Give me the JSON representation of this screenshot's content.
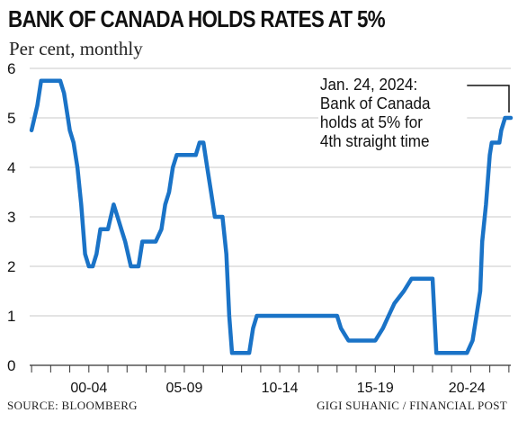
{
  "title": "BANK OF CANADA HOLDS RATES AT 5%",
  "subtitle": "Per cent, monthly",
  "source": "SOURCE: BLOOMBERG",
  "credit": "GIGI SUHANIC / FINANCIAL POST",
  "colors": {
    "line": "#1a73c7",
    "grid": "#c8c8c8",
    "axis": "#333333",
    "text": "#111111"
  },
  "chart_data": {
    "type": "line",
    "title": "BANK OF CANADA HOLDS RATES AT 5%",
    "subtitle": "Per cent, monthly",
    "ylim": [
      0,
      6
    ],
    "yticks": [
      "0",
      "1",
      "2",
      "3",
      "4",
      "5",
      "6"
    ],
    "grid": "horizontal",
    "xlim": [
      1998.9,
      2024.1
    ],
    "xticks": [
      {
        "label": "00-04",
        "x": 2002.0
      },
      {
        "label": "05-09",
        "x": 2007.0
      },
      {
        "label": "10-14",
        "x": 2012.0
      },
      {
        "label": "15-19",
        "x": 2017.0
      },
      {
        "label": "20-24",
        "x": 2021.8
      }
    ],
    "series": [
      {
        "points": [
          [
            1999.0,
            4.75
          ],
          [
            1999.3,
            5.25
          ],
          [
            1999.5,
            5.75
          ],
          [
            2000.0,
            5.75
          ],
          [
            2000.5,
            5.75
          ],
          [
            2000.7,
            5.5
          ],
          [
            2000.9,
            5.0
          ],
          [
            2001.0,
            4.75
          ],
          [
            2001.2,
            4.5
          ],
          [
            2001.4,
            4.0
          ],
          [
            2001.6,
            3.25
          ],
          [
            2001.8,
            2.25
          ],
          [
            2002.0,
            2.0
          ],
          [
            2002.2,
            2.0
          ],
          [
            2002.4,
            2.25
          ],
          [
            2002.6,
            2.75
          ],
          [
            2003.0,
            2.75
          ],
          [
            2003.3,
            3.25
          ],
          [
            2003.5,
            3.0
          ],
          [
            2003.7,
            2.75
          ],
          [
            2003.9,
            2.5
          ],
          [
            2004.2,
            2.0
          ],
          [
            2004.6,
            2.0
          ],
          [
            2004.8,
            2.5
          ],
          [
            2005.5,
            2.5
          ],
          [
            2005.8,
            2.75
          ],
          [
            2006.0,
            3.25
          ],
          [
            2006.2,
            3.5
          ],
          [
            2006.4,
            4.0
          ],
          [
            2006.6,
            4.25
          ],
          [
            2007.2,
            4.25
          ],
          [
            2007.6,
            4.25
          ],
          [
            2007.8,
            4.5
          ],
          [
            2008.0,
            4.5
          ],
          [
            2008.2,
            4.0
          ],
          [
            2008.4,
            3.5
          ],
          [
            2008.6,
            3.0
          ],
          [
            2009.0,
            3.0
          ],
          [
            2009.2,
            2.25
          ],
          [
            2009.35,
            1.0
          ],
          [
            2009.5,
            0.25
          ],
          [
            2010.4,
            0.25
          ],
          [
            2010.6,
            0.75
          ],
          [
            2010.8,
            1.0
          ],
          [
            2011.0,
            1.0
          ],
          [
            2012.0,
            1.0
          ],
          [
            2013.0,
            1.0
          ],
          [
            2014.0,
            1.0
          ],
          [
            2015.0,
            1.0
          ],
          [
            2015.2,
            0.75
          ],
          [
            2015.6,
            0.5
          ],
          [
            2017.0,
            0.5
          ],
          [
            2017.4,
            0.75
          ],
          [
            2017.7,
            1.0
          ],
          [
            2018.0,
            1.25
          ],
          [
            2018.5,
            1.5
          ],
          [
            2018.9,
            1.75
          ],
          [
            2020.0,
            1.75
          ],
          [
            2020.2,
            0.25
          ],
          [
            2021.0,
            0.25
          ],
          [
            2021.8,
            0.25
          ],
          [
            2022.1,
            0.5
          ],
          [
            2022.3,
            1.0
          ],
          [
            2022.5,
            1.5
          ],
          [
            2022.6,
            2.5
          ],
          [
            2022.8,
            3.25
          ],
          [
            2022.9,
            3.75
          ],
          [
            2023.0,
            4.25
          ],
          [
            2023.1,
            4.5
          ],
          [
            2023.5,
            4.5
          ],
          [
            2023.6,
            4.75
          ],
          [
            2023.8,
            5.0
          ],
          [
            2024.1,
            5.0
          ]
        ]
      }
    ],
    "annotation": {
      "text": "Jan. 24, 2024:\nBank of Canada\nholds at 5% for\n4th straight time",
      "points_to": [
        2024.1,
        5.0
      ]
    }
  }
}
